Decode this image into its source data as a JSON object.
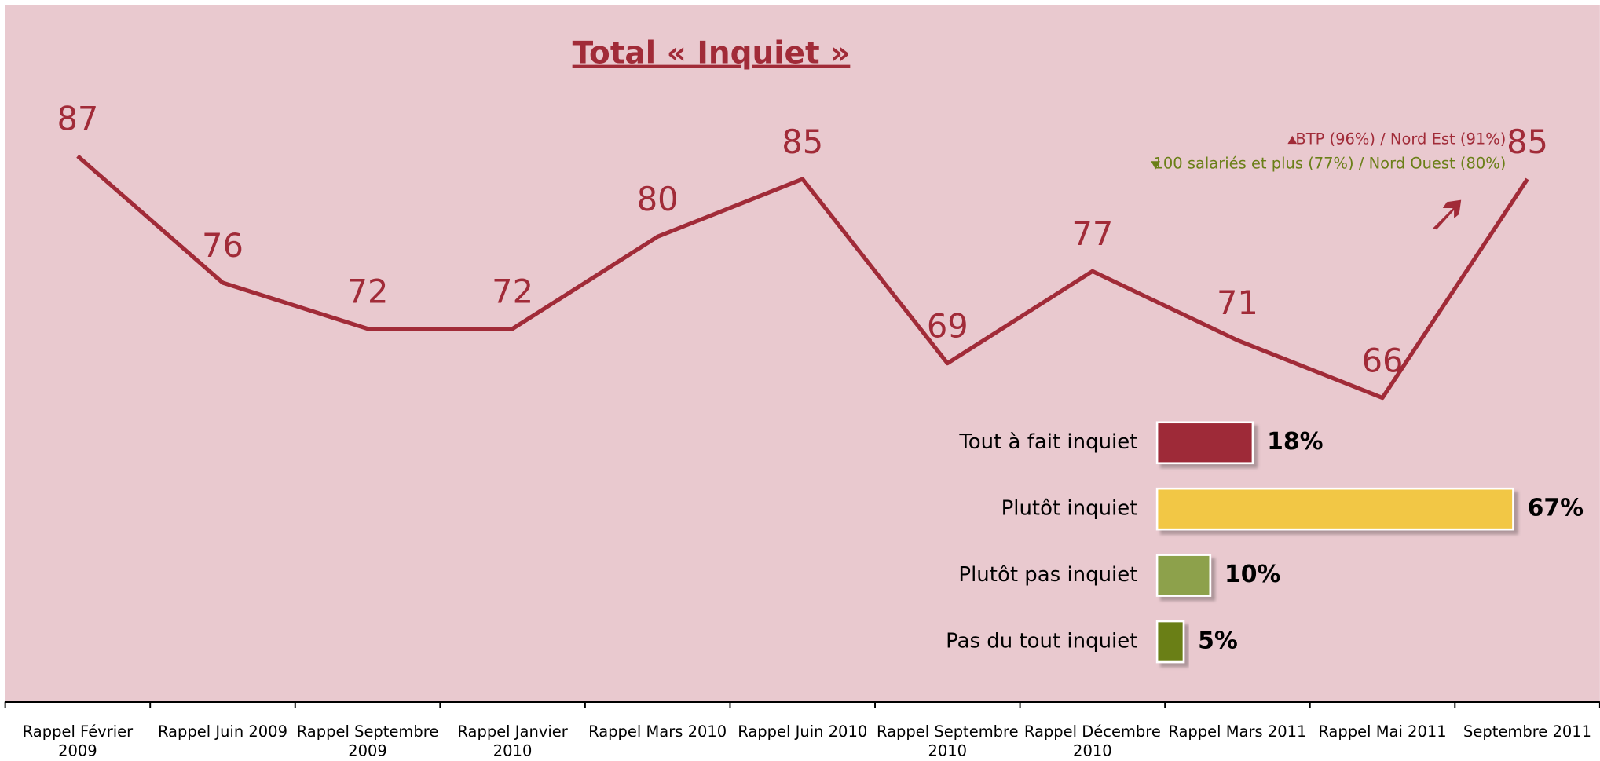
{
  "chart_data": [
    {
      "type": "line",
      "title": "Total « Inquiet »",
      "color": "#a12b38",
      "categories": [
        "Rappel Février 2009",
        "Rappel Juin 2009",
        "Rappel Septembre 2009",
        "Rappel Janvier 2010",
        "Rappel Mars 2010",
        "Rappel Juin 2010",
        "Rappel Septembre 2010",
        "Rappel Décembre 2010",
        "Rappel Mars 2011",
        "Rappel Mai 2011",
        "Septembre 2011"
      ],
      "values": [
        87,
        76,
        72,
        72,
        80,
        85,
        69,
        77,
        71,
        66,
        85
      ],
      "annotations": [
        {
          "text": "BTP (96%) / Nord Est (91%)",
          "color": "#a12b38"
        },
        {
          "text": "100 salariés et plus (77%) / Nord Ouest (80%)",
          "color": "#6a7f17"
        }
      ]
    },
    {
      "type": "bar",
      "orientation": "horizontal",
      "categories": [
        "Tout à fait inquiet",
        "Plutôt inquiet",
        "Plutôt pas inquiet",
        "Pas du tout inquiet"
      ],
      "values": [
        18,
        67,
        10,
        5
      ],
      "value_labels": [
        "18%",
        "67%",
        "10%",
        "5%"
      ],
      "colors": [
        "#9e2b37",
        "#f2c744",
        "#8da14b",
        "#6a7f17"
      ]
    }
  ]
}
